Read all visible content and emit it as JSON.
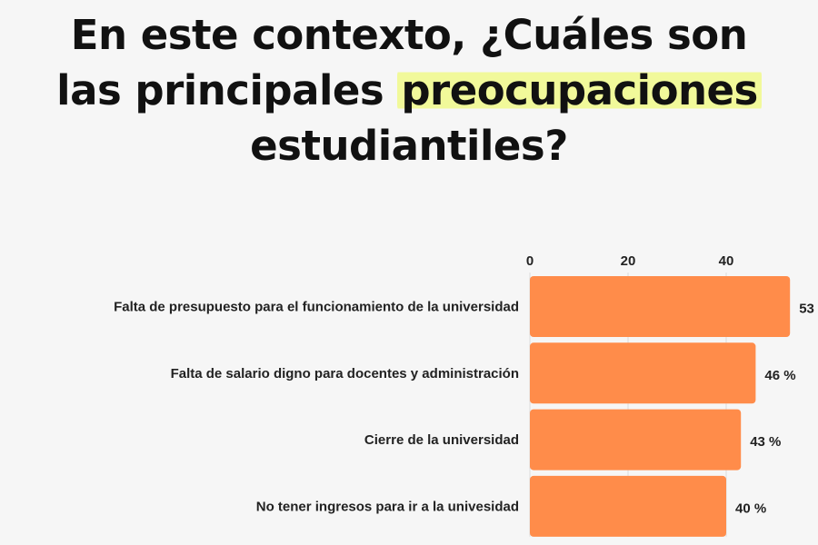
{
  "title": {
    "line1": "En este contexto, ¿Cuáles son",
    "line2_prefix": "las principales ",
    "line2_highlight": "preocupaciones",
    "line3": "estudiantiles?",
    "highlight_color": "#f1f99a"
  },
  "chart_data": {
    "type": "bar",
    "orientation": "horizontal",
    "categories": [
      "Falta de presupuesto para el funcionamiento de la universidad",
      "Falta de salario digno para docentes y administración",
      "Cierre de la universidad",
      "No tener ingresos para ir a la univesidad"
    ],
    "values": [
      53,
      46,
      43,
      40
    ],
    "value_labels": [
      "53",
      "46 %",
      "43 %",
      "40 %"
    ],
    "x_ticks": [
      "0",
      "20",
      "40"
    ],
    "x_tick_values": [
      0,
      20,
      40
    ],
    "xlim": [
      0,
      60
    ],
    "axis_position": "top",
    "grid": true,
    "bar_color": "#ff8c4a"
  }
}
